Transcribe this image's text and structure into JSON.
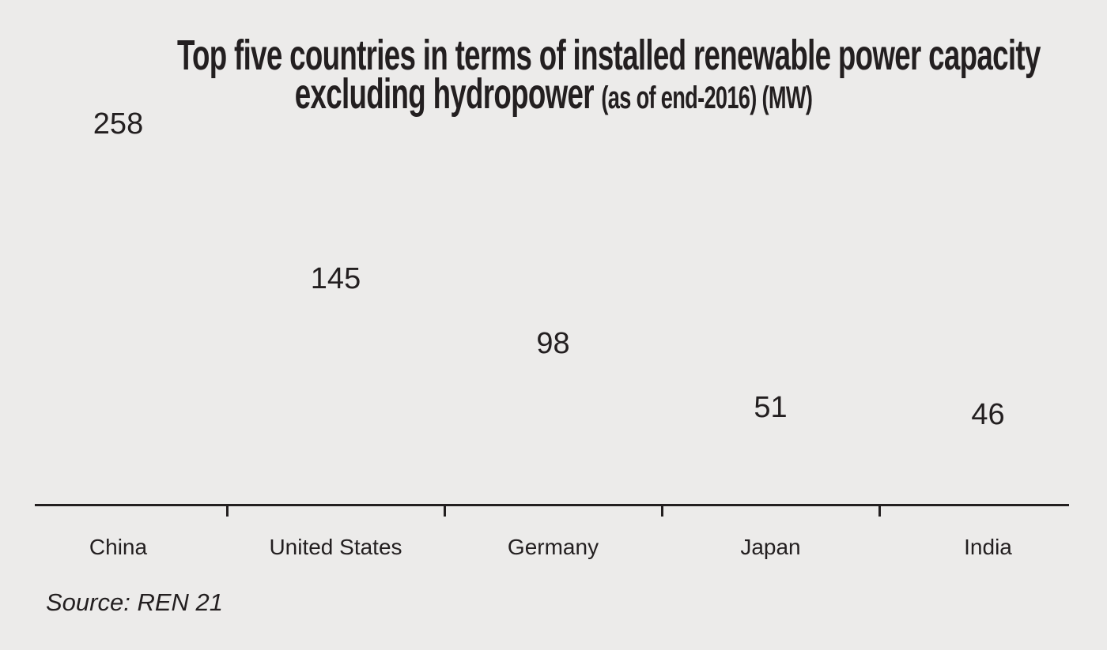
{
  "title": {
    "line1": "Top five countries in terms of installed renewable power capacity",
    "line2_main": "excluding hydropower ",
    "line2_note": "(as of end-2016) (MW)"
  },
  "source": "Source: REN 21",
  "colors": {
    "background": "#ecebea",
    "bar_default": "#6d6e71",
    "bar_highlight": "#a6ce39",
    "text": "#231f20",
    "axis": "#231f20"
  },
  "chart_data": {
    "type": "bar",
    "title": "Top five countries in terms of installed renewable power capacity excluding hydropower (as of end-2016) (MW)",
    "categories": [
      "China",
      "United States",
      "Germany",
      "Japan",
      "India"
    ],
    "values": [
      258,
      145,
      98,
      51,
      46
    ],
    "value_labels": [
      "258",
      "145",
      "98",
      "51",
      "46"
    ],
    "unit": "MW",
    "highlighted_category": "India",
    "xlabel": "",
    "ylabel": "",
    "ylim": [
      0,
      260
    ],
    "grid": false,
    "legend": false,
    "source": "Source: REN 21"
  }
}
